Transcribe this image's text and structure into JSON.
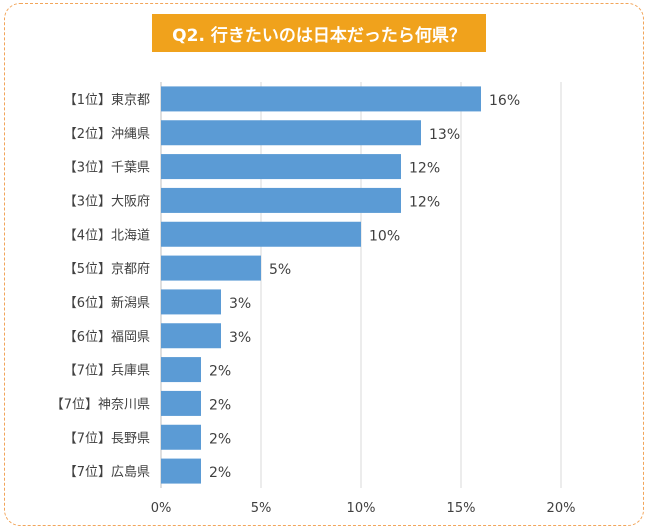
{
  "title": "Q2. 行きたいのは日本だったら何県？",
  "chart_data": {
    "type": "bar",
    "orientation": "horizontal",
    "title": "Q2. 行きたいのは日本だったら何県？",
    "categories": [
      "【1位】東京都",
      "【2位】沖縄県",
      "【3位】千葉県",
      "【3位】大阪府",
      "【4位】北海道",
      "【5位】京都府",
      "【6位】新潟県",
      "【6位】福岡県",
      "【7位】兵庫県",
      "【7位】神奈川県",
      "【7位】長野県",
      "【7位】広島県"
    ],
    "values": [
      16,
      13,
      12,
      12,
      10,
      5,
      3,
      3,
      2,
      2,
      2,
      2
    ],
    "data_labels": [
      "16%",
      "13%",
      "12%",
      "12%",
      "10%",
      "5%",
      "3%",
      "3%",
      "2%",
      "2%",
      "2%",
      "2%"
    ],
    "x_ticks": [
      0,
      5,
      10,
      15,
      20
    ],
    "x_tick_labels": [
      "0%",
      "5%",
      "10%",
      "15%",
      "20%"
    ],
    "xlim": [
      0,
      20
    ],
    "grid": true,
    "legend": "none",
    "colors": {
      "bar": "#5b9bd5",
      "grid": "#d9d9d9",
      "title_bg": "#f0a21c",
      "frame": "#f2a55a"
    }
  }
}
